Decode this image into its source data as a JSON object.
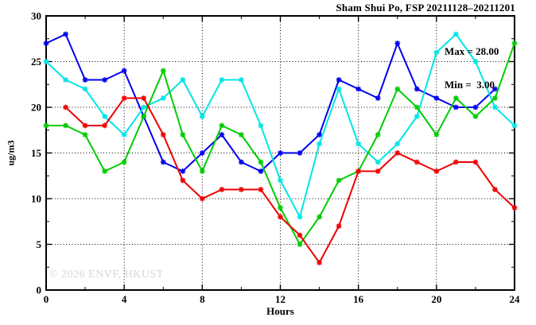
{
  "title": "Sham Shui Po, FSP 20211128–20211201",
  "watermark": "© 2026 ENVF, HKUST",
  "annotation": {
    "max_label": "Max = 28.00",
    "min_label": "Min =  3.00"
  },
  "axis_ticks": {
    "x_major_labels": [
      "0",
      "4",
      "8",
      "12",
      "16",
      "20",
      "24"
    ],
    "y_major_labels": [
      "0",
      "5",
      "10",
      "15",
      "20",
      "25",
      "30"
    ]
  },
  "chart_data": {
    "type": "line",
    "title": "Sham Shui Po, FSP 20211128–20211201",
    "xlabel": "Hours",
    "ylabel": "ug/m3",
    "xlim": [
      0,
      24
    ],
    "ylim": [
      0,
      30
    ],
    "x_major_ticks": [
      0,
      4,
      8,
      12,
      16,
      20,
      24
    ],
    "x_minor_ticks": [
      2,
      6,
      10,
      14,
      18,
      22
    ],
    "y_major_ticks": [
      0,
      5,
      10,
      15,
      20,
      25,
      30
    ],
    "y_minor_ticks": [
      2.5,
      7.5,
      12.5,
      17.5,
      22.5,
      27.5
    ],
    "grid": "dotted black lines at interior major ticks",
    "legend_position": "none",
    "stats": {
      "max": 28.0,
      "min": 3.0
    },
    "x": [
      0,
      1,
      2,
      3,
      4,
      5,
      6,
      7,
      8,
      9,
      10,
      11,
      12,
      13,
      14,
      15,
      16,
      17,
      18,
      19,
      20,
      21,
      22,
      23,
      24
    ],
    "series": [
      {
        "name": "series-blue",
        "color": "#0000ee",
        "values": [
          27,
          28,
          23,
          23,
          24,
          19,
          14,
          13,
          15,
          17,
          14,
          13,
          15,
          15,
          17,
          23,
          22,
          21,
          27,
          22,
          21,
          20,
          20,
          22,
          null
        ]
      },
      {
        "name": "series-cyan",
        "color": "#00e6e6",
        "values": [
          25,
          23,
          22,
          19,
          17,
          20,
          21,
          23,
          19,
          23,
          23,
          18,
          12,
          8,
          16,
          22,
          16,
          14,
          16,
          19,
          26,
          28,
          25,
          20,
          18
        ]
      },
      {
        "name": "series-green",
        "color": "#00cc00",
        "values": [
          18,
          18,
          17,
          13,
          14,
          19,
          24,
          17,
          13,
          18,
          17,
          14,
          9,
          5,
          8,
          12,
          13,
          17,
          22,
          20,
          17,
          21,
          19,
          21,
          27
        ]
      },
      {
        "name": "series-red",
        "color": "#ee0000",
        "values": [
          null,
          20,
          18,
          18,
          21,
          21,
          17,
          12,
          10,
          11,
          11,
          11,
          8,
          6,
          3,
          7,
          13,
          13,
          15,
          14,
          13,
          14,
          14,
          11,
          9
        ]
      }
    ]
  }
}
